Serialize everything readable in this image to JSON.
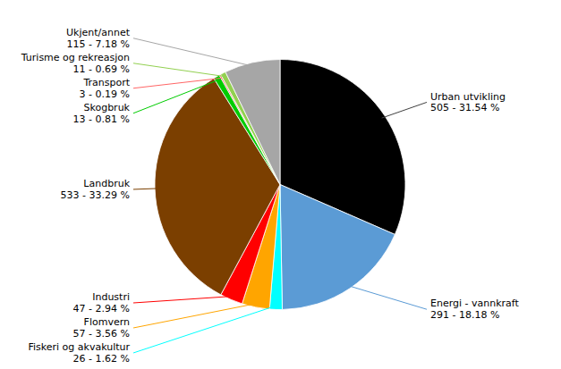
{
  "chart_data": {
    "type": "pie",
    "categories": [
      "Urban utvikling",
      "Energi - vannkraft",
      "Fiskeri og akvakultur",
      "Flomvern",
      "Industri",
      "Landbruk",
      "Skogbruk",
      "Transport",
      "Turisme og rekreasjon",
      "Ukjent/annet"
    ],
    "values": [
      505,
      291,
      26,
      57,
      47,
      533,
      13,
      3,
      11,
      115
    ],
    "value_labels": [
      "505 - 31.54 %",
      "291 - 18.18 %",
      "26 - 1.62 %",
      "57 - 3.56 %",
      "47 - 2.94 %",
      "533 - 33.29 %",
      "13 - 0.81 %",
      "3 - 0.19 %",
      "11 - 0.69 %",
      "115 - 7.18 %"
    ],
    "colors": [
      "#000000",
      "#5B9BD5",
      "#00FFFF",
      "#FFA500",
      "#FF0000",
      "#7B3F00",
      "#00CC00",
      "#FF6666",
      "#92D050",
      "#A6A6A6"
    ],
    "data_labels": true
  }
}
